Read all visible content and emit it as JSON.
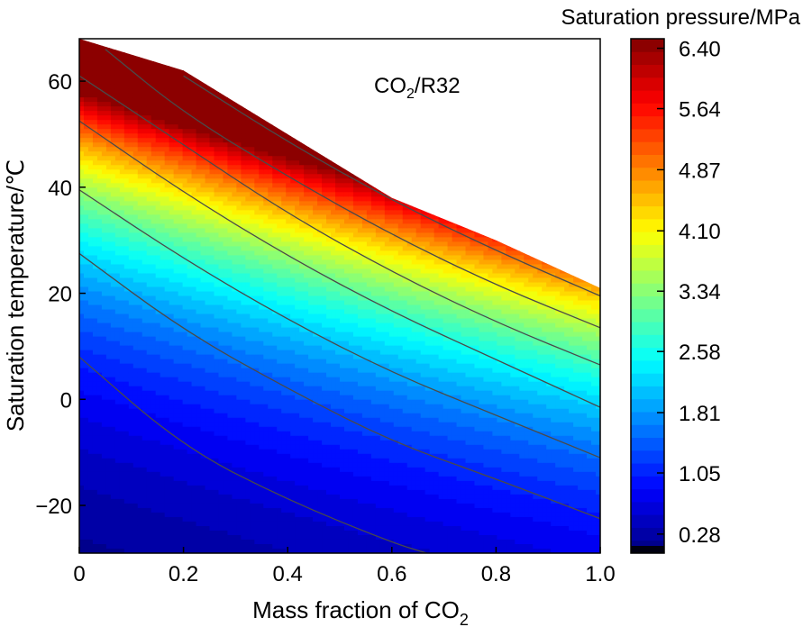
{
  "chart_data": {
    "type": "heatmap",
    "subtype": "filled-contour",
    "title": "CO2/R32",
    "title_parts": {
      "main": "CO",
      "sub": "2",
      "rest": "/R32"
    },
    "xlabel": "Mass fraction of CO2",
    "xlabel_parts": {
      "main": "Mass fraction of CO",
      "sub": "2"
    },
    "ylabel": "Saturation temperature/℃",
    "xlim": [
      0,
      1.0
    ],
    "ylim": [
      -29,
      68
    ],
    "x_ticks": [
      0,
      0.2,
      0.4,
      0.6,
      0.8,
      1.0
    ],
    "x_tick_labels": [
      "0",
      "0.2",
      "0.4",
      "0.6",
      "0.8",
      "1.0"
    ],
    "y_ticks": [
      -20,
      0,
      20,
      40,
      60
    ],
    "y_tick_labels": [
      "−20",
      "0",
      "20",
      "40",
      "60"
    ],
    "colorbar": {
      "label": "Saturation pressure/MPa",
      "range": [
        0.28,
        6.4
      ],
      "ticks": [
        0.28,
        1.05,
        1.81,
        2.58,
        3.34,
        4.1,
        4.87,
        5.64,
        6.4
      ],
      "tick_labels": [
        "0.28",
        "1.05",
        "1.81",
        "2.58",
        "3.34",
        "4.10",
        "4.87",
        "5.64",
        "6.40"
      ],
      "colormap": "jet"
    },
    "valid_region_upper_boundary": [
      {
        "x": 0.0,
        "y": 68
      },
      {
        "x": 0.2,
        "y": 62
      },
      {
        "x": 0.4,
        "y": 50
      },
      {
        "x": 0.6,
        "y": 38
      },
      {
        "x": 0.8,
        "y": 30
      },
      {
        "x": 1.0,
        "y": 21
      }
    ],
    "isolines": [
      {
        "name": "iso-1",
        "points": [
          {
            "x": 0.0,
            "y": 8
          },
          {
            "x": 0.2,
            "y": -9
          },
          {
            "x": 0.4,
            "y": -19
          },
          {
            "x": 0.6,
            "y": -27
          },
          {
            "x": 0.667,
            "y": -29
          }
        ]
      },
      {
        "name": "iso-2",
        "points": [
          {
            "x": 0.0,
            "y": 27.5
          },
          {
            "x": 0.2,
            "y": 13
          },
          {
            "x": 0.4,
            "y": 2
          },
          {
            "x": 0.6,
            "y": -8
          },
          {
            "x": 0.8,
            "y": -15
          },
          {
            "x": 1.0,
            "y": -22.5
          }
        ]
      },
      {
        "name": "iso-3",
        "points": [
          {
            "x": 0.0,
            "y": 39.5
          },
          {
            "x": 0.2,
            "y": 26.5
          },
          {
            "x": 0.4,
            "y": 15
          },
          {
            "x": 0.6,
            "y": 5
          },
          {
            "x": 0.8,
            "y": -3
          },
          {
            "x": 1.0,
            "y": -11
          }
        ]
      },
      {
        "name": "iso-4",
        "points": [
          {
            "x": 0.0,
            "y": 52.5
          },
          {
            "x": 0.2,
            "y": 39
          },
          {
            "x": 0.4,
            "y": 27
          },
          {
            "x": 0.6,
            "y": 16.5
          },
          {
            "x": 0.8,
            "y": 7.5
          },
          {
            "x": 1.0,
            "y": -1.5
          }
        ]
      },
      {
        "name": "iso-5",
        "points": [
          {
            "x": 0.0,
            "y": 61
          },
          {
            "x": 0.2,
            "y": 48
          },
          {
            "x": 0.4,
            "y": 35
          },
          {
            "x": 0.6,
            "y": 24
          },
          {
            "x": 0.8,
            "y": 14.5
          },
          {
            "x": 1.0,
            "y": 6.5
          }
        ]
      },
      {
        "name": "iso-6",
        "points": [
          {
            "x": 0.05,
            "y": 66
          },
          {
            "x": 0.2,
            "y": 54
          },
          {
            "x": 0.4,
            "y": 42
          },
          {
            "x": 0.6,
            "y": 31
          },
          {
            "x": 0.8,
            "y": 21.5
          },
          {
            "x": 1.0,
            "y": 13.5
          }
        ]
      },
      {
        "name": "iso-7",
        "points": [
          {
            "x": 0.2,
            "y": 61
          },
          {
            "x": 0.4,
            "y": 48.5
          },
          {
            "x": 0.6,
            "y": 37.5
          },
          {
            "x": 0.8,
            "y": 28
          },
          {
            "x": 1.0,
            "y": 19.5
          }
        ]
      }
    ],
    "note": "Saturation pressure increases with temperature and with CO2 mass fraction; region above the upper boundary is blank (no data)."
  }
}
